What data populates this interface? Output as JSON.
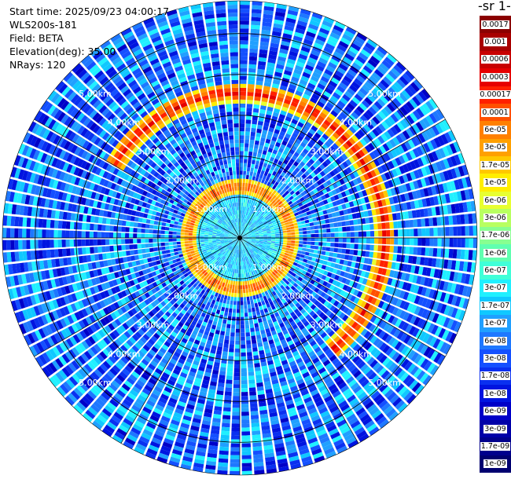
{
  "header": {
    "start_time": "Start time: 2025/09/23 04:00:17",
    "instrument": "WLS200s-181",
    "field": "Field: BETA",
    "elevation": "Elevation(deg): 35.00",
    "nrays": "NRays: 120"
  },
  "colorbar": {
    "unit_label": "-1 sr-",
    "levels": [
      "0.0017",
      "0.001",
      "0.0006",
      "0.0003",
      "0.00017",
      "0.0001",
      "6e-05",
      "3e-05",
      "1.7e-05",
      "1e-05",
      "6e-06",
      "3e-06",
      "1.7e-06",
      "1e-06",
      "6e-07",
      "3e-07",
      "1.7e-07",
      "1e-07",
      "6e-08",
      "3e-08",
      "1.7e-08",
      "1e-08",
      "6e-09",
      "3e-09",
      "1.7e-09",
      "1e-09"
    ],
    "colors": [
      "#8b0000",
      "#a80000",
      "#c80000",
      "#e60000",
      "#ff2000",
      "#ff5000",
      "#ff8000",
      "#ffa000",
      "#ffc800",
      "#ffee00",
      "#e8ff30",
      "#b8ff60",
      "#88ff90",
      "#60ffb0",
      "#40ffd8",
      "#20f0ff",
      "#10c8ff",
      "#20a0ff",
      "#1e78ff",
      "#1450ff",
      "#0a30f0",
      "#0014e0",
      "#0000c8",
      "#0000a8",
      "#00008c",
      "#000070"
    ]
  },
  "chart_data": {
    "type": "heatmap",
    "title": "",
    "projection": "polar (PPI scan)",
    "field": "BETA",
    "elevation_deg": 35.0,
    "n_rays": 120,
    "max_range_km": 5.8,
    "range_rings_km": [
      1.0,
      2.0,
      3.0,
      4.0,
      5.0
    ],
    "range_ring_labels": [
      "1.00km",
      "2.00km",
      "3.00km",
      "4.00km",
      "5.00km"
    ],
    "azimuth_lines_deg": [
      0,
      30,
      60,
      90,
      120,
      150,
      180,
      210,
      240,
      270,
      300,
      330
    ],
    "color_scale": "log",
    "value_range": [
      1e-09,
      0.0017
    ],
    "features": [
      {
        "name": "inner ring",
        "range_km": 1.25,
        "typical_value": 0.0001
      },
      {
        "name": "outer arc",
        "range_km": 3.55,
        "azimuth_span_deg": [
          -60,
          140
        ],
        "typical_value": 0.0003
      },
      {
        "name": "background",
        "typical_value": 6e-08
      }
    ]
  }
}
